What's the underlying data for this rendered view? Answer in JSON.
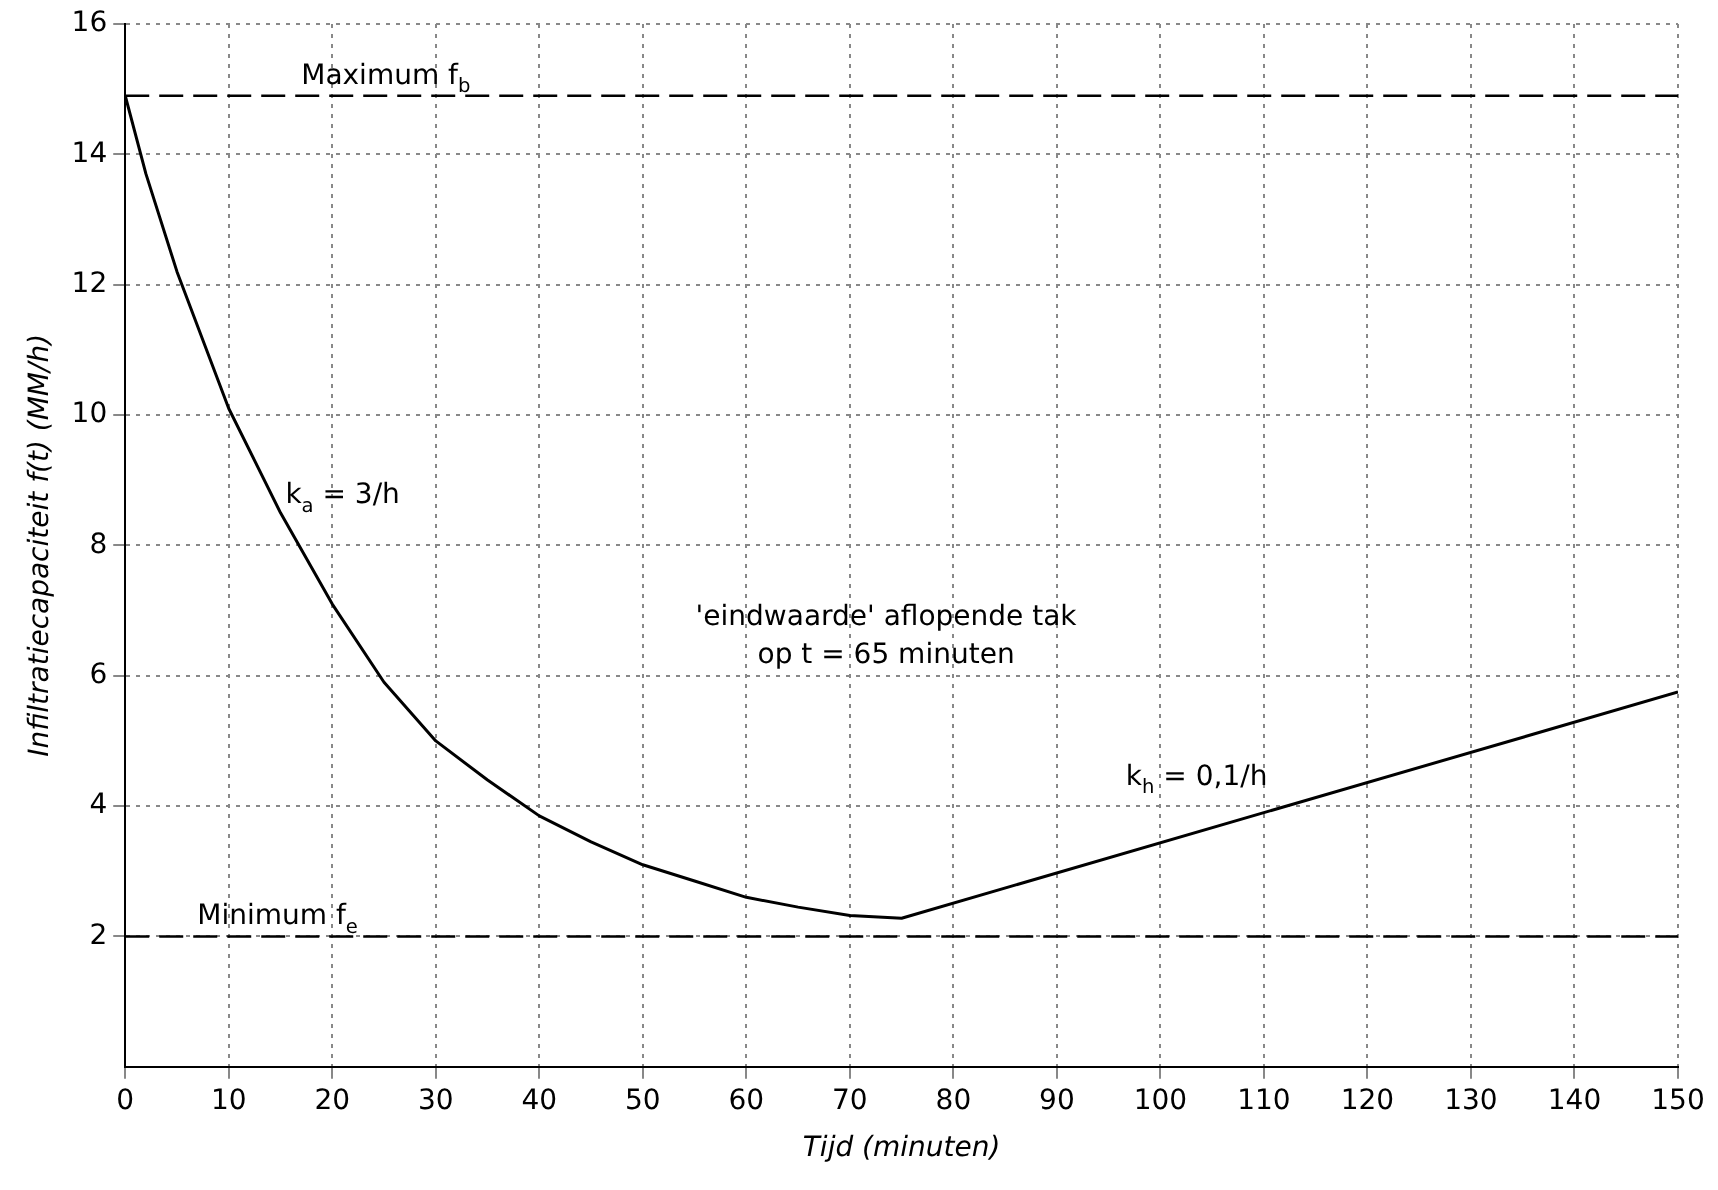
{
  "chart_data": {
    "type": "line",
    "xlabel": "Tijd (minuten)",
    "ylabel": "Infiltratiecapaciteit f(t) (MM/h)",
    "x": [
      0,
      2,
      5,
      10,
      15,
      20,
      25,
      30,
      35,
      40,
      45,
      50,
      55,
      60,
      65,
      70,
      75,
      150
    ],
    "series": [
      {
        "color": "#000000",
        "values": [
          14.9,
          13.7,
          12.2,
          10.1,
          8.5,
          7.1,
          5.9,
          5.0,
          4.4,
          3.85,
          3.45,
          3.1,
          2.85,
          2.6,
          2.45,
          2.32,
          2.28,
          5.75
        ]
      }
    ],
    "xlim": [
      0,
      150
    ],
    "xticks": [
      0,
      10,
      20,
      30,
      40,
      50,
      60,
      70,
      80,
      90,
      100,
      110,
      120,
      130,
      140,
      150
    ],
    "ylim": [
      0,
      16
    ],
    "yticks": [
      2,
      4,
      6,
      8,
      10,
      12,
      14,
      16
    ],
    "grid": true,
    "legend": false,
    "marker": "none",
    "line_style": "solid",
    "ref_lines": [
      {
        "axis": "y",
        "value": 14.9,
        "label": "Maximum f$_{b}$",
        "line_style": "dashed",
        "color": "#000000"
      },
      {
        "axis": "y",
        "value": 2,
        "label": "Minimum f$_{e}$",
        "line_style": "dashed",
        "color": "#000000"
      }
    ],
    "annotations": [
      "k$_{a}$ = 3/h",
      "'eindwaarde' aflopende tak\nop t = 65 minuten",
      "k$_{h}$ = 0,1/h"
    ]
  }
}
